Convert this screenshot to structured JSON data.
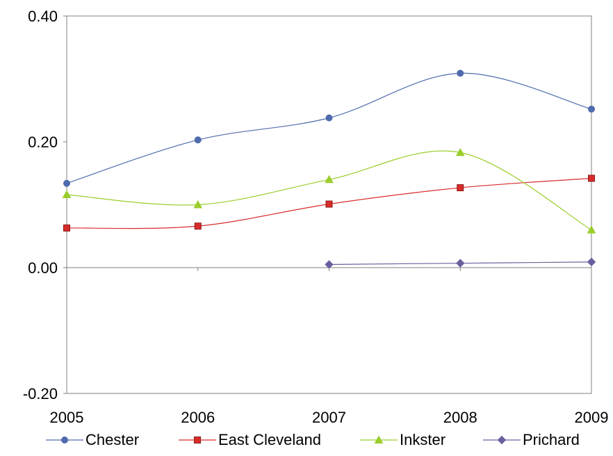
{
  "chart_data": {
    "type": "line",
    "smooth": true,
    "title": "",
    "xlabel": "",
    "ylabel": "",
    "categories": [
      "2005",
      "2006",
      "2007",
      "2008",
      "2009"
    ],
    "ylim": [
      -0.2,
      0.4
    ],
    "yticks": [
      "0.40",
      "0.20",
      "0.00",
      "-0.20"
    ],
    "ytick_values": [
      0.4,
      0.2,
      0.0,
      -0.2
    ],
    "grid": false,
    "legend_position": "bottom",
    "series": [
      {
        "name": "Chester",
        "color": "#4f6bad",
        "marker": "circle",
        "values": [
          0.134,
          0.203,
          0.238,
          0.309,
          0.252
        ]
      },
      {
        "name": "East Cleveland",
        "color": "#d92b2b",
        "marker": "square",
        "values": [
          0.063,
          0.066,
          0.101,
          0.127,
          0.142
        ]
      },
      {
        "name": "Inkster",
        "color": "#9acd2a",
        "marker": "triangle",
        "values": [
          0.116,
          0.1,
          0.14,
          0.183,
          0.06
        ]
      },
      {
        "name": "Prichard",
        "color": "#6a5f9e",
        "marker": "diamond",
        "values": [
          null,
          null,
          0.005,
          0.007,
          0.009
        ]
      }
    ]
  }
}
